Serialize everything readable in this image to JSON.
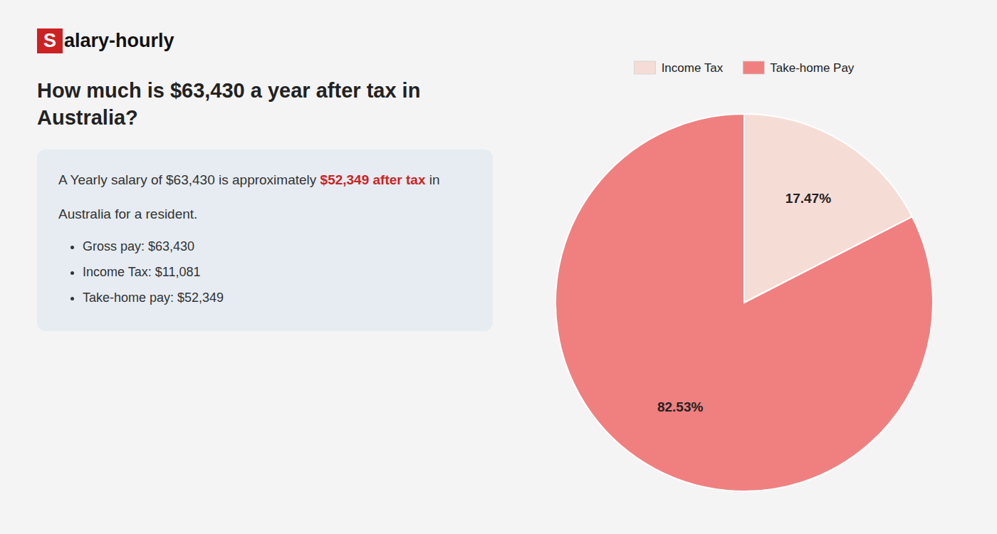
{
  "chart_data": {
    "type": "pie",
    "title": "How much is $63,430 a year after tax in Australia?",
    "annotations": [
      "S",
      "alary-hourly",
      "A Yearly salary of $63,430 is approximately ",
      "$52,349 after tax",
      " in",
      "Australia for a resident.",
      "Gross pay: $63,430",
      "Income Tax: $11,081",
      "Take-home pay: $52,349"
    ],
    "categories": [
      "Income Tax",
      "Take-home Pay"
    ],
    "values": [
      17.47,
      82.53
    ],
    "value_labels": [
      "17.47%",
      "82.53%"
    ],
    "colors": [
      "#f5ddd5",
      "#f08080"
    ],
    "data_labels": true,
    "legend": "top"
  }
}
